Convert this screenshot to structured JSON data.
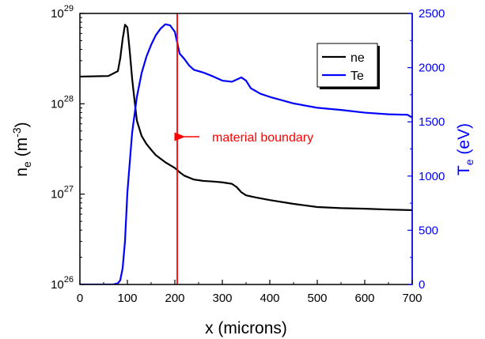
{
  "chart_data": {
    "type": "line",
    "xlabel": "x (microns)",
    "ylabel_left": {
      "base": "n",
      "sub": "e",
      "unit_open": " (m",
      "unit_sup": "-3",
      "unit_close": ")"
    },
    "ylabel_right": {
      "base": "T",
      "sub": "e",
      "unit": " (eV)"
    },
    "xlim": [
      0,
      700
    ],
    "x_ticks": [
      0,
      100,
      200,
      300,
      400,
      500,
      600,
      700
    ],
    "y_left": {
      "scale": "log",
      "lim": [
        1e+26,
        1e+29
      ],
      "ticks": [
        {
          "value": 1e+26,
          "base": "10",
          "exp": "26"
        },
        {
          "value": 1e+27,
          "base": "10",
          "exp": "27"
        },
        {
          "value": 1e+28,
          "base": "10",
          "exp": "28"
        },
        {
          "value": 1e+29,
          "base": "10",
          "exp": "29"
        }
      ]
    },
    "y_right": {
      "scale": "linear",
      "lim": [
        0,
        2500
      ],
      "ticks": [
        0,
        500,
        1000,
        1500,
        2000,
        2500
      ],
      "color": "#0000ff"
    },
    "series": [
      {
        "name": "ne",
        "axis": "left",
        "color": "#000000",
        "x": [
          0,
          60,
          80,
          85,
          90,
          95,
          100,
          105,
          110,
          115,
          120,
          130,
          140,
          150,
          160,
          180,
          200,
          210,
          220,
          240,
          260,
          280,
          300,
          320,
          330,
          340,
          350,
          370,
          400,
          450,
          500,
          550,
          600,
          650,
          700
        ],
        "y": [
          2e+28,
          2.03e+28,
          2.3e+28,
          3.2e+28,
          5.2e+28,
          7.5e+28,
          7e+28,
          3.8e+28,
          1.9e+28,
          1.1e+28,
          6.5e+27,
          4.4e+27,
          3.6e+27,
          3.1e+27,
          2.7e+27,
          2.25e+27,
          1.95e+27,
          1.75e+27,
          1.6e+27,
          1.45e+27,
          1.4e+27,
          1.38e+27,
          1.35e+27,
          1.3e+27,
          1.2e+27,
          1.05e+27,
          9.7e+26,
          9.2e+26,
          8.6e+26,
          7.8e+26,
          7.2e+26,
          7e+26,
          6.9e+26,
          6.75e+26,
          6.65e+26
        ]
      },
      {
        "name": "Te",
        "axis": "right",
        "color": "#0000ff",
        "x": [
          0,
          70,
          80,
          85,
          90,
          95,
          100,
          110,
          120,
          130,
          140,
          150,
          160,
          170,
          180,
          190,
          200,
          205,
          210,
          220,
          230,
          240,
          260,
          280,
          300,
          320,
          330,
          340,
          350,
          360,
          380,
          400,
          450,
          500,
          550,
          600,
          650,
          690,
          700
        ],
        "y": [
          0,
          0,
          10,
          40,
          150,
          400,
          850,
          1400,
          1730,
          1950,
          2100,
          2210,
          2300,
          2360,
          2400,
          2390,
          2330,
          2230,
          2130,
          2080,
          2020,
          1980,
          1955,
          1920,
          1880,
          1870,
          1890,
          1910,
          1880,
          1810,
          1760,
          1730,
          1670,
          1630,
          1610,
          1585,
          1570,
          1565,
          1540
        ]
      }
    ],
    "legend": {
      "position": "top-right",
      "entries": [
        {
          "name": "ne",
          "color": "#000000"
        },
        {
          "name": "Te",
          "color": "#0000ff"
        }
      ]
    },
    "annotation": {
      "text": "material boundary",
      "x": 205,
      "color": "#ff0000"
    },
    "grid": false
  }
}
